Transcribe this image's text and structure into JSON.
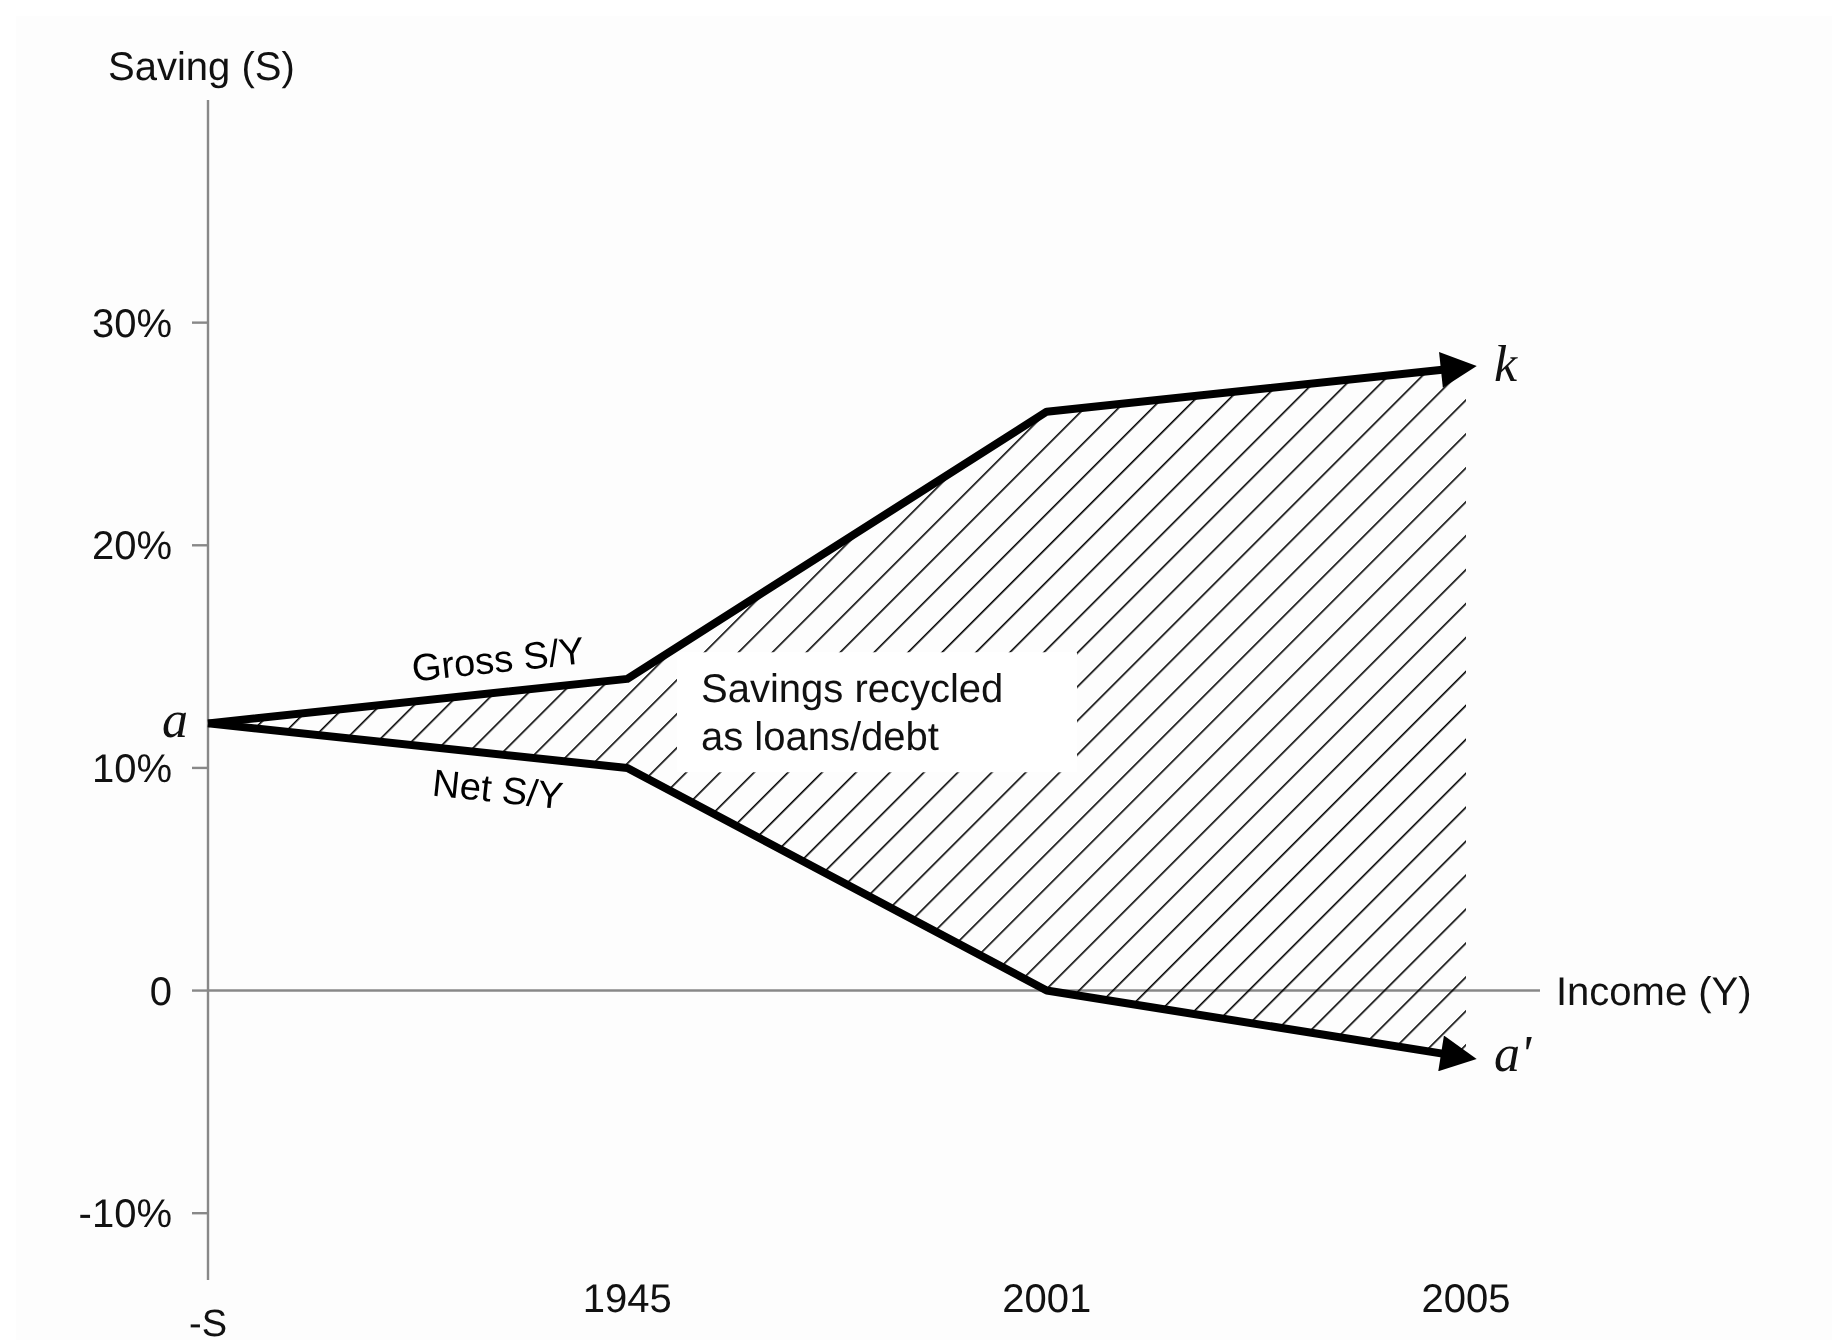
{
  "chart_data": {
    "type": "line",
    "ylabel": "Saving (S)",
    "xlabel": "Income (Y)",
    "categories": [
      null,
      "1945",
      "2001",
      "2005"
    ],
    "series": [
      {
        "name": "Gross S/Y",
        "color": "#000000",
        "values": [
          12,
          14,
          26,
          28
        ],
        "lower": [
          12,
          10,
          0,
          -3
        ],
        "upper": [
          12,
          14,
          26,
          28
        ]
      },
      {
        "name": "Net S/Y",
        "color": "#000000",
        "values": [
          12,
          10,
          0,
          -3
        ]
      }
    ],
    "ylim": [
      -13,
      40
    ],
    "yticks": [
      {
        "value": -10,
        "label": "-10%"
      },
      0,
      {
        "value": 10,
        "label": "10%"
      },
      {
        "value": 20,
        "label": "20%"
      },
      {
        "value": 30,
        "label": "30%"
      }
    ],
    "annotations": [
      "a",
      {
        "text": "k",
        "x": "2005",
        "y": 28
      },
      {
        "text": "a'",
        "x": "2005",
        "y": -3
      },
      "Savings recycled as loans/debt",
      "-S"
    ]
  }
}
